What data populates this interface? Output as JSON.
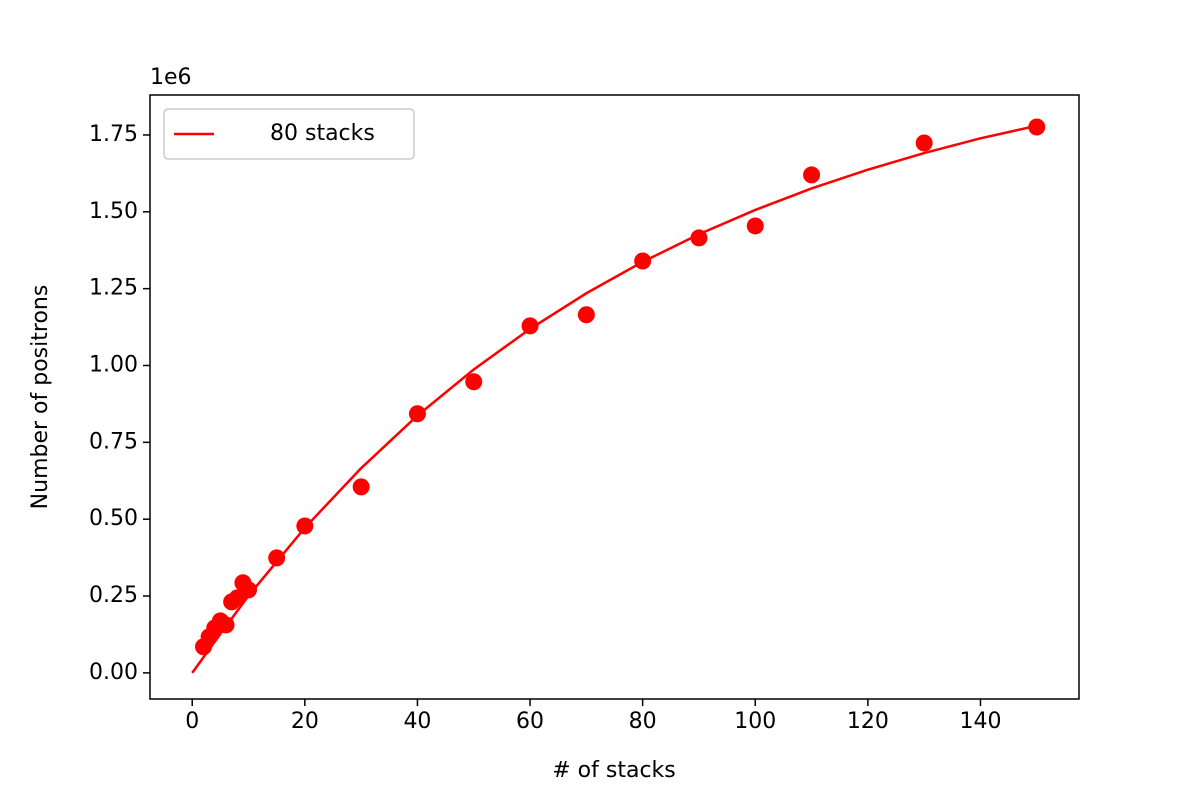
{
  "chart_data": {
    "type": "scatter",
    "xlabel": "# of stacks",
    "ylabel": "Number of positrons",
    "y_offset_label": "1e6",
    "xlim": [
      -7.5,
      157.5
    ],
    "ylim": [
      -85000,
      1880000
    ],
    "xticks": [
      0,
      20,
      40,
      60,
      80,
      100,
      120,
      140
    ],
    "yticks": [
      {
        "value": 0,
        "label": "0.00"
      },
      {
        "value": 250000,
        "label": "0.25"
      },
      {
        "value": 500000,
        "label": "0.50"
      },
      {
        "value": 750000,
        "label": "0.75"
      },
      {
        "value": 1000000,
        "label": "1.00"
      },
      {
        "value": 1250000,
        "label": "1.25"
      },
      {
        "value": 1500000,
        "label": "1.50"
      },
      {
        "value": 1750000,
        "label": "1.75"
      }
    ],
    "legend": "upper left",
    "series": [
      {
        "name": "80 stacks",
        "color": "#ff0000",
        "style": "line",
        "x": [
          0,
          5,
          10,
          20,
          30,
          40,
          50,
          60,
          70,
          80,
          90,
          100,
          110,
          120,
          130,
          140,
          150
        ],
        "values": [
          0,
          127000,
          251000,
          472000,
          666000,
          837000,
          987000,
          1119000,
          1235000,
          1337000,
          1427000,
          1506000,
          1576000,
          1637000,
          1691000,
          1739000,
          1780000
        ]
      },
      {
        "color": "#ff0000",
        "style": "scatter",
        "x": [
          2,
          3,
          4,
          5,
          6,
          7,
          8,
          9,
          10,
          15,
          20,
          30,
          40,
          50,
          60,
          70,
          80,
          90,
          100,
          110,
          130,
          150
        ],
        "values": [
          85000,
          117000,
          146000,
          169000,
          156000,
          231000,
          244000,
          293000,
          270000,
          374000,
          478000,
          605000,
          843000,
          947000,
          1129000,
          1165000,
          1340000,
          1415000,
          1454000,
          1620000,
          1724000,
          1776000
        ]
      }
    ]
  }
}
